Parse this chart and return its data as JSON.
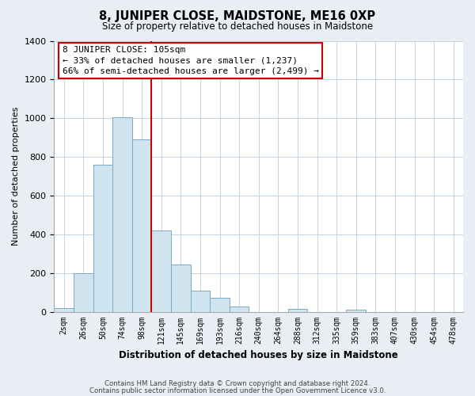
{
  "title": "8, JUNIPER CLOSE, MAIDSTONE, ME16 0XP",
  "subtitle": "Size of property relative to detached houses in Maidstone",
  "xlabel": "Distribution of detached houses by size in Maidstone",
  "ylabel": "Number of detached properties",
  "bar_labels": [
    "2sqm",
    "26sqm",
    "50sqm",
    "74sqm",
    "98sqm",
    "121sqm",
    "145sqm",
    "169sqm",
    "193sqm",
    "216sqm",
    "240sqm",
    "264sqm",
    "288sqm",
    "312sqm",
    "335sqm",
    "359sqm",
    "383sqm",
    "407sqm",
    "430sqm",
    "454sqm",
    "478sqm"
  ],
  "bar_heights": [
    20,
    200,
    760,
    1005,
    890,
    420,
    245,
    110,
    70,
    25,
    0,
    0,
    15,
    0,
    0,
    10,
    0,
    0,
    0,
    0,
    0
  ],
  "bar_color": "#d0e4f0",
  "bar_edge_color": "#7aaac8",
  "vline_color": "#cc0000",
  "vline_pos": 4.5,
  "ylim": [
    0,
    1400
  ],
  "yticks": [
    0,
    200,
    400,
    600,
    800,
    1000,
    1200,
    1400
  ],
  "annotation_title": "8 JUNIPER CLOSE: 105sqm",
  "annotation_line1": "← 33% of detached houses are smaller (1,237)",
  "annotation_line2": "66% of semi-detached houses are larger (2,499) →",
  "footnote1": "Contains HM Land Registry data © Crown copyright and database right 2024.",
  "footnote2": "Contains public sector information licensed under the Open Government Licence v3.0.",
  "bg_color": "#e8eef4",
  "plot_bg_color": "#ffffff",
  "grid_color": "#c5d5e5"
}
